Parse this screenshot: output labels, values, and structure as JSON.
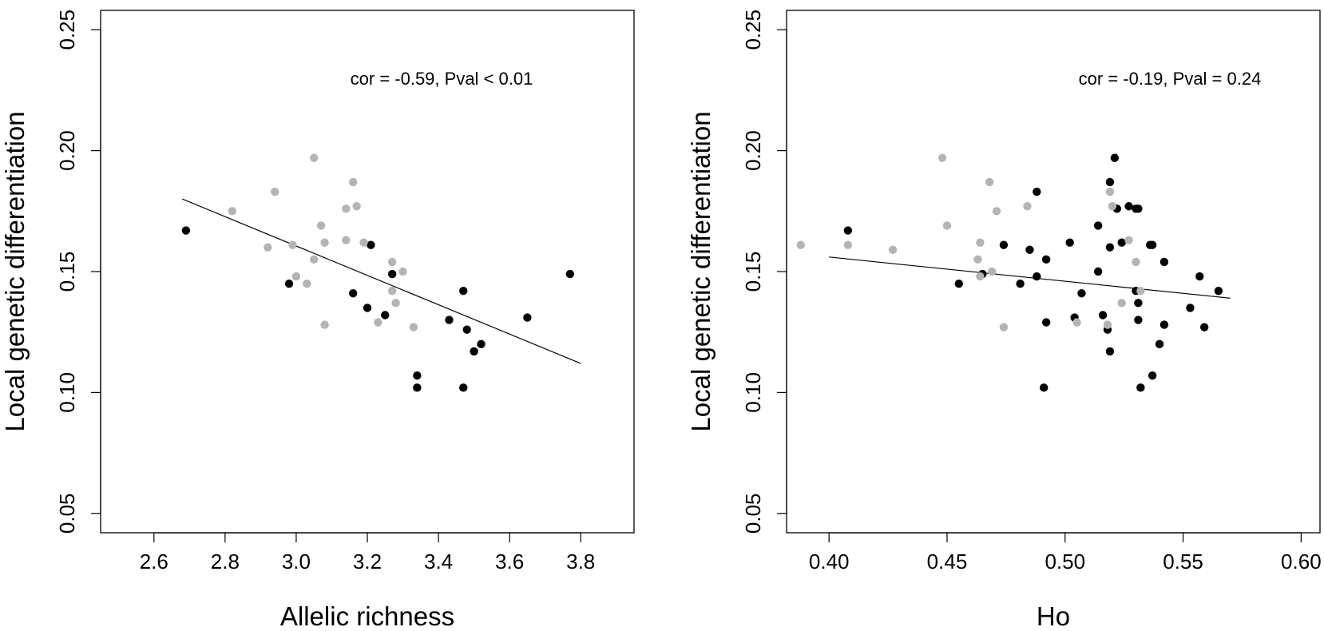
{
  "colors": {
    "black_points": "#000000",
    "gray_points": "#b4b4b4",
    "frame": "#000000",
    "line": "#000000",
    "background": "#ffffff"
  },
  "chart_data": [
    {
      "type": "scatter",
      "xlabel": "Allelic richness",
      "ylabel": "Local genetic differentiation",
      "annotation": "cor = -0.59, Pval < 0.01",
      "xlim": [
        2.45,
        3.95
      ],
      "ylim": [
        0.042,
        0.258
      ],
      "xticks": [
        2.6,
        2.8,
        3.0,
        3.2,
        3.4,
        3.6,
        3.8
      ],
      "xtick_labels": [
        "2.6",
        "2.8",
        "3.0",
        "3.2",
        "3.4",
        "3.6",
        "3.8"
      ],
      "yticks": [
        0.05,
        0.1,
        0.15,
        0.2,
        0.25
      ],
      "ytick_labels": [
        "0.05",
        "0.10",
        "0.15",
        "0.20",
        "0.25"
      ],
      "grid": false,
      "regression_line": {
        "x": [
          2.68,
          3.8
        ],
        "y": [
          0.18,
          0.112
        ]
      },
      "series": [
        {
          "color": "black",
          "x": [
            2.69,
            2.98,
            3.16,
            3.2,
            3.21,
            3.25,
            3.27,
            3.34,
            3.34,
            3.43,
            3.47,
            3.47,
            3.48,
            3.5,
            3.52,
            3.65,
            3.77
          ],
          "y": [
            0.167,
            0.145,
            0.141,
            0.135,
            0.161,
            0.132,
            0.149,
            0.107,
            0.102,
            0.13,
            0.142,
            0.102,
            0.126,
            0.117,
            0.12,
            0.131,
            0.149
          ]
        },
        {
          "color": "gray",
          "x": [
            2.82,
            2.92,
            2.94,
            2.99,
            3.0,
            3.03,
            3.05,
            3.05,
            3.07,
            3.08,
            3.08,
            3.14,
            3.14,
            3.16,
            3.17,
            3.19,
            3.23,
            3.27,
            3.27,
            3.28,
            3.3,
            3.33
          ],
          "y": [
            0.175,
            0.16,
            0.183,
            0.161,
            0.148,
            0.145,
            0.197,
            0.155,
            0.169,
            0.162,
            0.128,
            0.176,
            0.163,
            0.187,
            0.177,
            0.162,
            0.129,
            0.154,
            0.142,
            0.137,
            0.15,
            0.127
          ]
        }
      ]
    },
    {
      "type": "scatter",
      "xlabel": "Ho",
      "ylabel": "Local genetic differentiation",
      "annotation": "cor = -0.19, Pval = 0.24",
      "xlim": [
        0.382,
        0.608
      ],
      "ylim": [
        0.042,
        0.258
      ],
      "xticks": [
        0.4,
        0.45,
        0.5,
        0.55,
        0.6
      ],
      "xtick_labels": [
        "0.40",
        "0.45",
        "0.50",
        "0.55",
        "0.60"
      ],
      "yticks": [
        0.05,
        0.1,
        0.15,
        0.2,
        0.25
      ],
      "ytick_labels": [
        "0.05",
        "0.10",
        "0.15",
        "0.20",
        "0.25"
      ],
      "grid": false,
      "regression_line": {
        "x": [
          0.4,
          0.57
        ],
        "y": [
          0.156,
          0.139
        ]
      },
      "series": [
        {
          "color": "black",
          "x": [
            0.408,
            0.455,
            0.465,
            0.474,
            0.481,
            0.485,
            0.488,
            0.488,
            0.491,
            0.492,
            0.492,
            0.502,
            0.504,
            0.507,
            0.514,
            0.514,
            0.516,
            0.518,
            0.519,
            0.519,
            0.519,
            0.521,
            0.522,
            0.524,
            0.527,
            0.53,
            0.53,
            0.531,
            0.531,
            0.531,
            0.532,
            0.536,
            0.537,
            0.537,
            0.54,
            0.542,
            0.542,
            0.553,
            0.557,
            0.559,
            0.565
          ],
          "y": [
            0.167,
            0.145,
            0.149,
            0.161,
            0.145,
            0.159,
            0.183,
            0.148,
            0.102,
            0.155,
            0.129,
            0.162,
            0.131,
            0.141,
            0.169,
            0.15,
            0.132,
            0.126,
            0.187,
            0.16,
            0.117,
            0.197,
            0.176,
            0.162,
            0.177,
            0.176,
            0.142,
            0.137,
            0.13,
            0.176,
            0.102,
            0.161,
            0.107,
            0.161,
            0.12,
            0.154,
            0.128,
            0.135,
            0.148,
            0.127,
            0.142
          ]
        },
        {
          "color": "gray",
          "x": [
            0.388,
            0.408,
            0.427,
            0.448,
            0.45,
            0.463,
            0.464,
            0.464,
            0.468,
            0.469,
            0.471,
            0.474,
            0.484,
            0.505,
            0.518,
            0.519,
            0.52,
            0.524,
            0.527,
            0.53,
            0.532
          ],
          "y": [
            0.161,
            0.161,
            0.159,
            0.197,
            0.169,
            0.155,
            0.148,
            0.162,
            0.187,
            0.15,
            0.175,
            0.127,
            0.177,
            0.129,
            0.128,
            0.183,
            0.177,
            0.137,
            0.163,
            0.154,
            0.142
          ]
        }
      ]
    }
  ]
}
